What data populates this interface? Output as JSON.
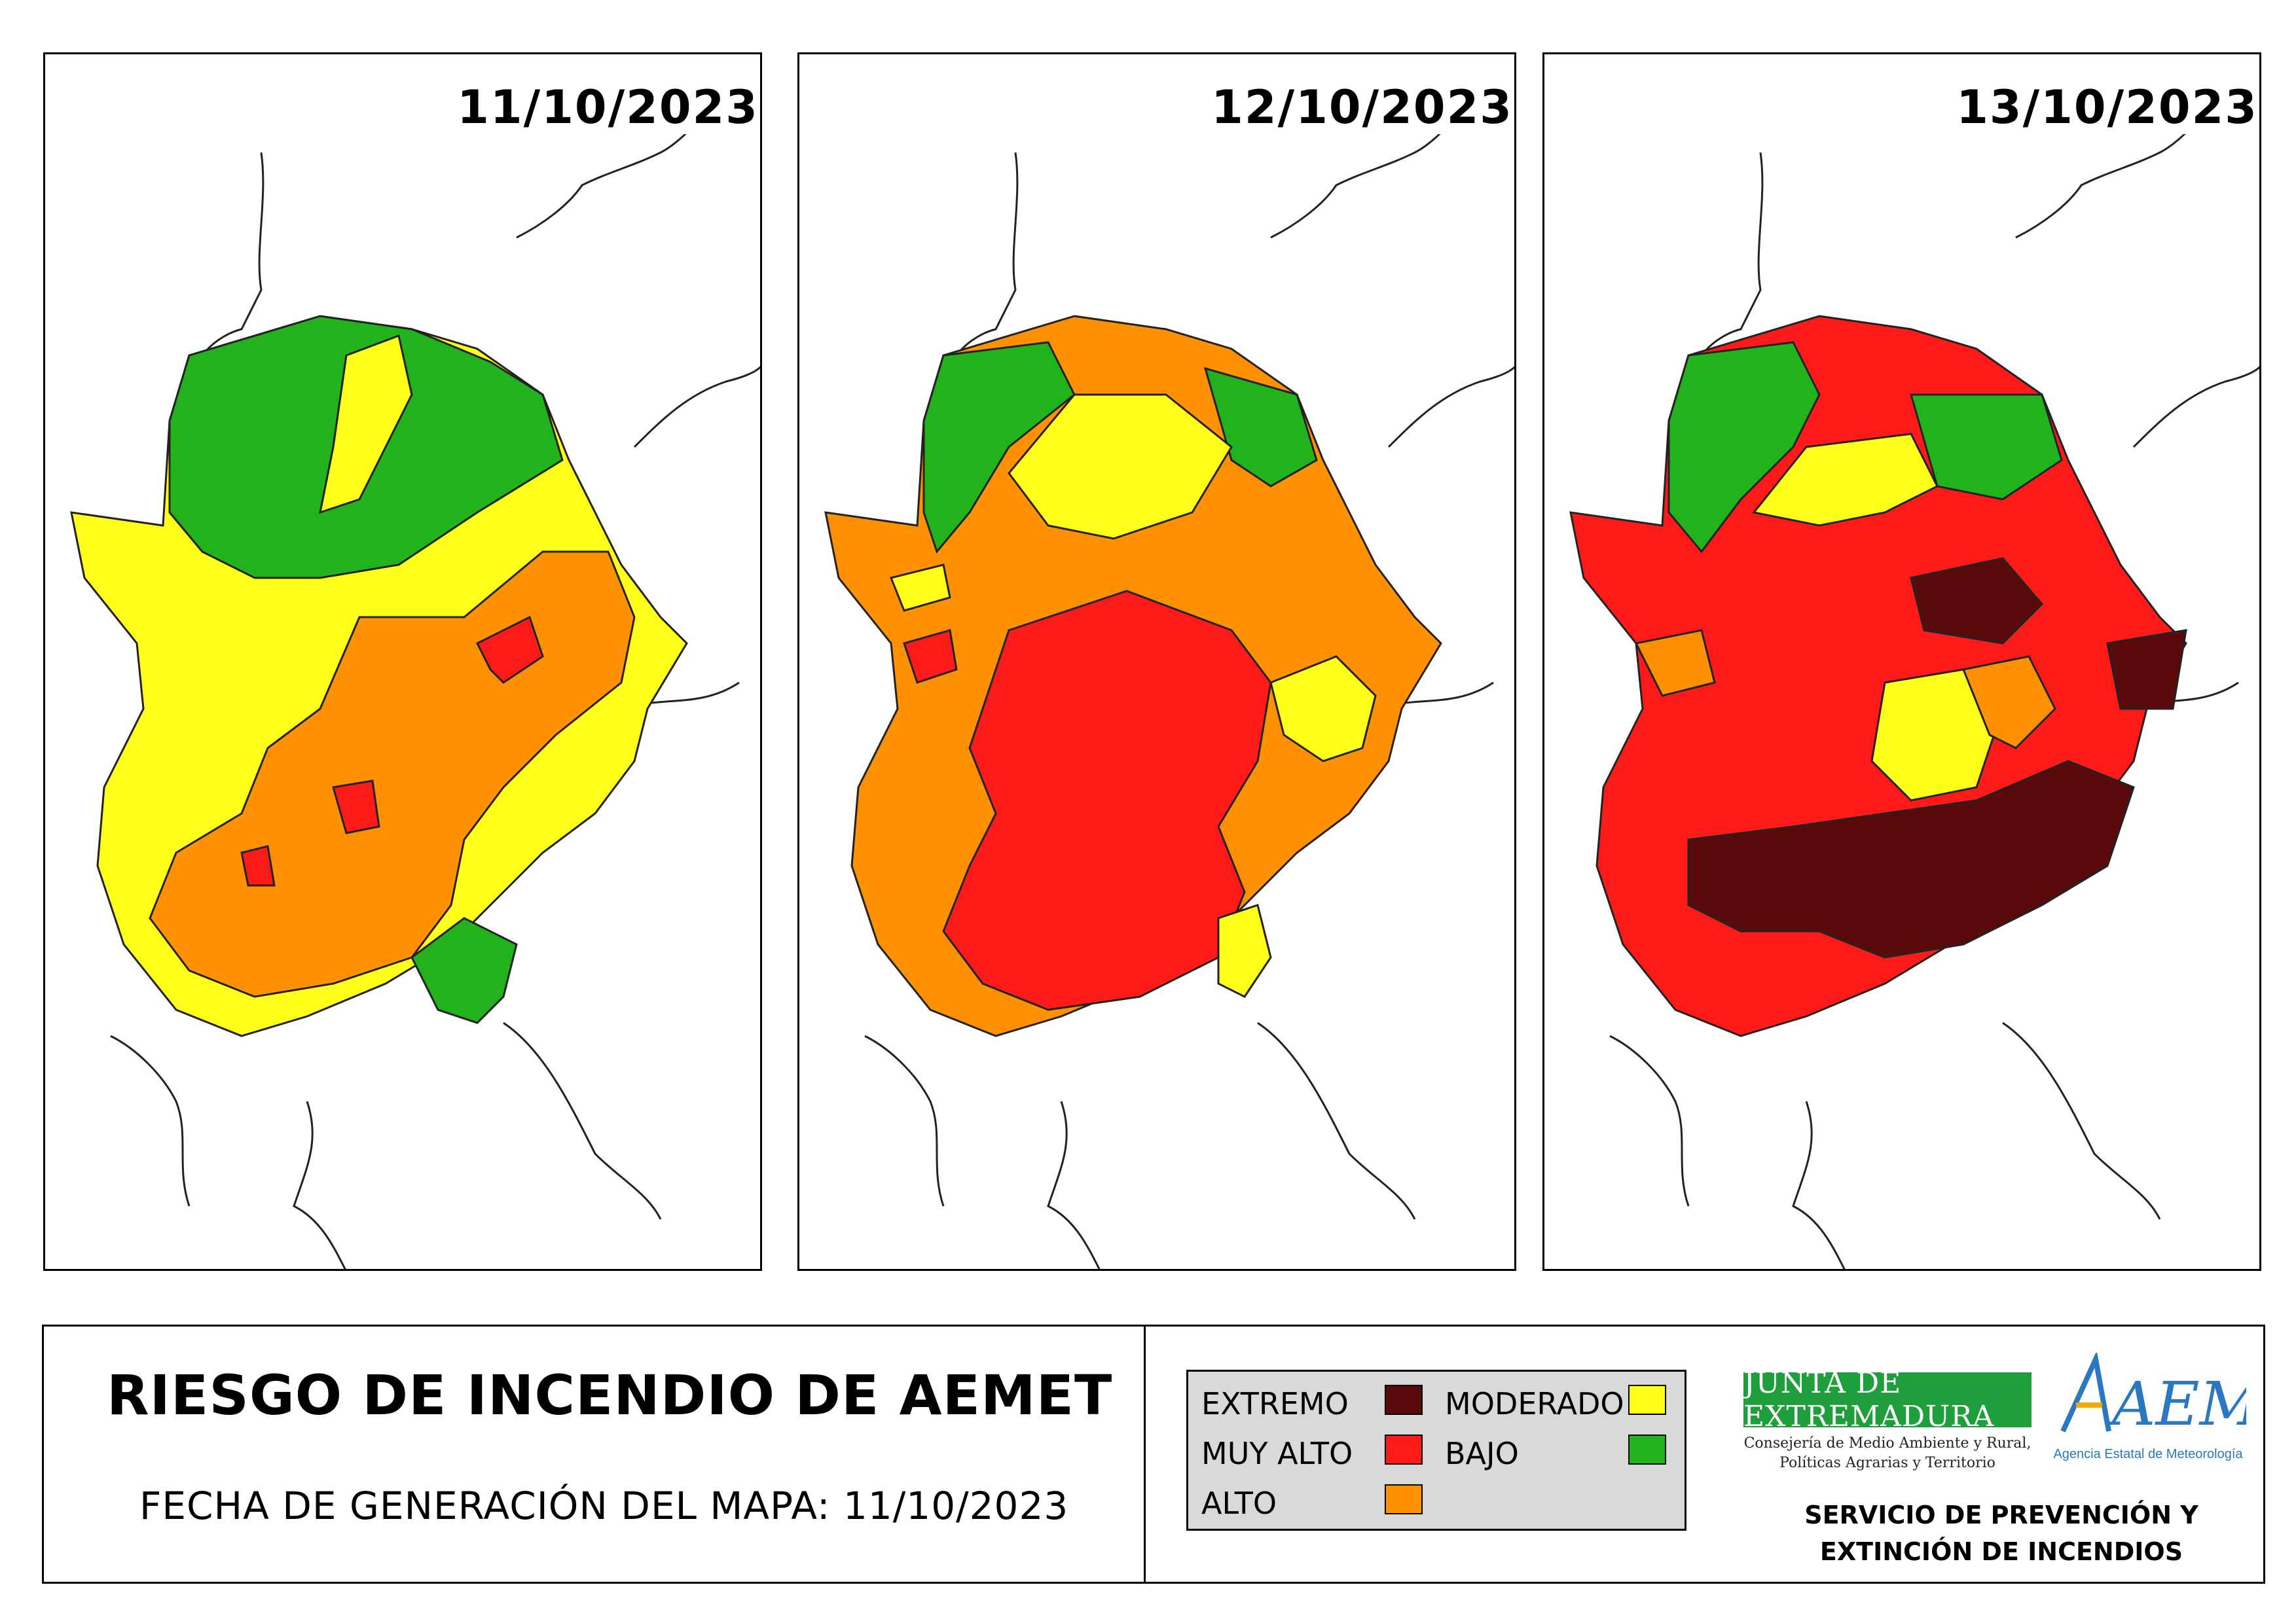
{
  "maps": [
    {
      "date": "11/10/2023"
    },
    {
      "date": "12/10/2023"
    },
    {
      "date": "13/10/2023"
    }
  ],
  "footer": {
    "title": "RIESGO DE INCENDIO DE AEMET",
    "generation": "FECHA DE GENERACIÓN DEL MAPA: 11/10/2023"
  },
  "legend": {
    "extremo": "EXTREMO",
    "muy_alto": "MUY ALTO",
    "alto": "ALTO",
    "moderado": "MODERADO",
    "bajo": "BAJO"
  },
  "colors": {
    "extremo": "#5a0a0a",
    "muy_alto": "#ff1a1a",
    "alto": "#ff9100",
    "moderado": "#ffff1a",
    "bajo": "#22b31c"
  },
  "logos": {
    "junta": "JUNTA DE EXTREMADURA",
    "junta_sub1": "Consejería de Medio Ambiente y Rural,",
    "junta_sub2": "Políticas Agrarias y Territorio",
    "aemet": "AEMet",
    "aemet_sub": "Agencia Estatal de Meteorología"
  },
  "service": {
    "line1": "SERVICIO DE PREVENCIÓN Y",
    "line2": "EXTINCIÓN DE INCENDIOS"
  }
}
